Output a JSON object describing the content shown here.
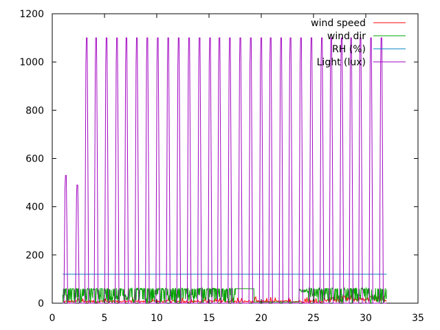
{
  "chart_data": {
    "type": "line",
    "title": "",
    "xlabel": "",
    "ylabel": "",
    "xlim": [
      0,
      35
    ],
    "ylim": [
      0,
      1200
    ],
    "xticks": [
      0,
      5,
      10,
      15,
      20,
      25,
      30,
      35
    ],
    "yticks": [
      0,
      200,
      400,
      600,
      800,
      1000,
      1200
    ],
    "grid": false,
    "legend": "top-right",
    "series": [
      {
        "name": "wind speed",
        "color": "#ff0000",
        "style": "low-noise",
        "x_range": [
          1,
          32
        ],
        "level": 3,
        "amp": 8
      },
      {
        "name": "wind dir",
        "color": "#00a000",
        "style": "wind-dir",
        "x_range": [
          1,
          32
        ],
        "level": 30,
        "amp": 60
      },
      {
        "name": "RH (%)",
        "color": "#0080c0",
        "style": "flat",
        "x_range": [
          1,
          32
        ],
        "level": 120
      },
      {
        "name": "Light (lux)",
        "color": "#a000c0",
        "style": "daily-spikes",
        "days": [
          1.3,
          2.4,
          3.3,
          4.2,
          5.2,
          6.2,
          7.1,
          8.1,
          9.1,
          10.1,
          11.1,
          12.1,
          13.1,
          14.1,
          15.1,
          16.0,
          17.0,
          18.0,
          19.0,
          20.0,
          20.9,
          21.9,
          22.8,
          23.8,
          24.8,
          25.8,
          26.7,
          27.7,
          28.6,
          29.5,
          30.5,
          31.5
        ],
        "peaks": [
          530,
          490,
          1100,
          1100,
          1100,
          1100,
          1100,
          1100,
          1100,
          1100,
          1100,
          1100,
          1100,
          1100,
          1100,
          1100,
          1100,
          1100,
          1100,
          1100,
          1100,
          1100,
          1100,
          1100,
          1100,
          1100,
          1100,
          1100,
          1100,
          1100,
          1100,
          1100
        ]
      }
    ]
  }
}
